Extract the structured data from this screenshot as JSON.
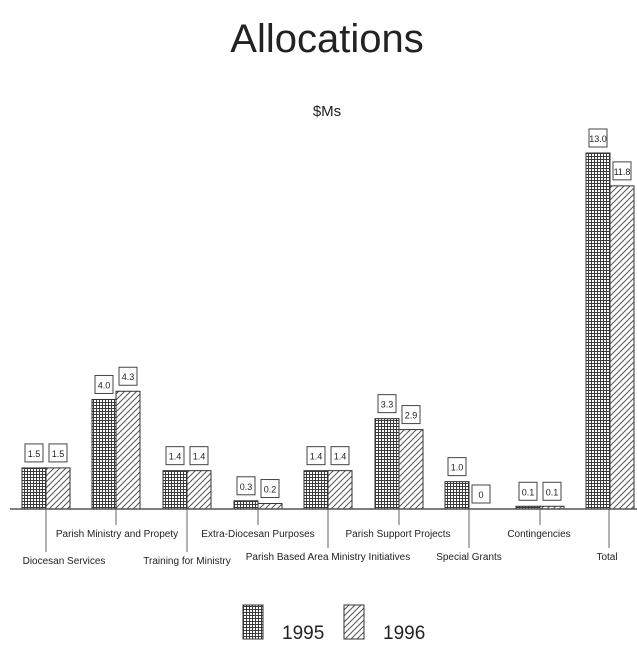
{
  "chart_data": {
    "type": "bar",
    "title": "Allocations",
    "subtitle": "$Ms",
    "categories": [
      "Diocesan Services",
      "Parish Ministry and Propety",
      "Training for Ministry",
      "Extra-Diocesan Purposes",
      "Parish Based Area Ministry Initiatives",
      "Parish Support Projects",
      "Special Grants",
      "Contingencies",
      "Total"
    ],
    "series": [
      {
        "name": "1995",
        "values": [
          1.5,
          4.0,
          1.4,
          0.3,
          1.4,
          3.3,
          1.0,
          0.1,
          13.0
        ],
        "labels": [
          "1.5",
          "4.0",
          "1.4",
          "0.3",
          "1.4",
          "3.3",
          "1.0",
          "0.1",
          "13.0"
        ]
      },
      {
        "name": "1996",
        "values": [
          1.5,
          4.3,
          1.4,
          0.2,
          1.4,
          2.9,
          0,
          0.1,
          11.8
        ],
        "labels": [
          "1.5",
          "4.3",
          "1.4",
          "0.2",
          "1.4",
          "2.9",
          "0",
          "0.1",
          "11.8"
        ]
      }
    ],
    "ylim": [
      0,
      13.0
    ],
    "grid": false,
    "legend": "bottom-center",
    "xlabel": "",
    "ylabel": ""
  }
}
